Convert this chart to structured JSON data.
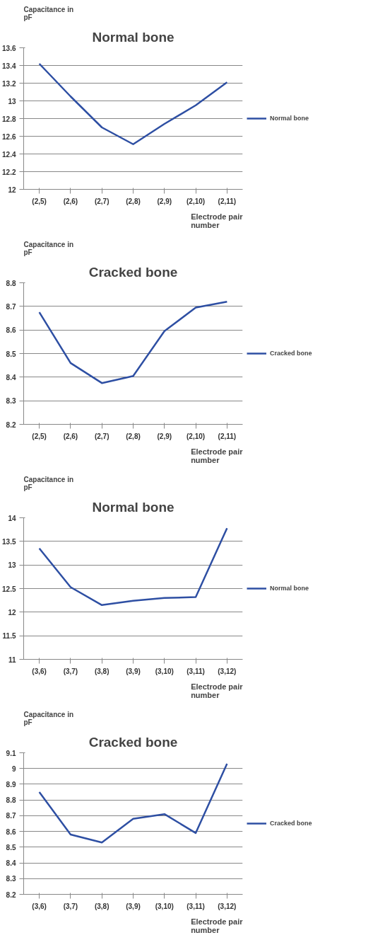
{
  "chart_data": [
    {
      "type": "line",
      "title": "Normal bone",
      "ylabel": "Capacitance in pF",
      "xlabel": "Electrode pair number",
      "categories": [
        "(2,5)",
        "(2,6)",
        "(2,7)",
        "(2,8)",
        "(2,9)",
        "(2,10)",
        "(2,11)"
      ],
      "series": [
        {
          "name": "Normal bone",
          "color": "#2e4fa3",
          "values": [
            13.42,
            13.05,
            12.7,
            12.51,
            12.74,
            12.95,
            13.21
          ]
        }
      ],
      "ylim": [
        12,
        13.6
      ],
      "yticks": [
        12,
        12.2,
        12.4,
        12.6,
        12.8,
        13,
        13.2,
        13.4,
        13.6
      ],
      "grid": "y",
      "legend": "right"
    },
    {
      "type": "line",
      "title": "Cracked bone",
      "ylabel": "Capacitance in pF",
      "xlabel": "Electrode pair number",
      "categories": [
        "(2,5)",
        "(2,6)",
        "(2,7)",
        "(2,8)",
        "(2,9)",
        "(2,10)",
        "(2,11)"
      ],
      "series": [
        {
          "name": "Cracked bone",
          "color": "#2e4fa3",
          "values": [
            8.675,
            8.46,
            8.375,
            8.405,
            8.595,
            8.695,
            8.72
          ]
        }
      ],
      "ylim": [
        8.2,
        8.8
      ],
      "yticks": [
        8.2,
        8.3,
        8.4,
        8.5,
        8.6,
        8.7,
        8.8
      ],
      "grid": "y",
      "legend": "right"
    },
    {
      "type": "line",
      "title": "Normal bone",
      "ylabel": "Capacitance in pF",
      "xlabel": "Electrode pair number",
      "categories": [
        "(3,6)",
        "(3,7)",
        "(3,8)",
        "(3,9)",
        "(3,10)",
        "(3,11)",
        "(3,12)"
      ],
      "series": [
        {
          "name": "Normal bone",
          "color": "#2e4fa3",
          "values": [
            13.35,
            12.53,
            12.15,
            12.24,
            12.3,
            12.32,
            13.78
          ]
        }
      ],
      "ylim": [
        11,
        14
      ],
      "yticks": [
        11,
        11.5,
        12,
        12.5,
        13,
        13.5,
        14
      ],
      "grid": "y",
      "legend": "right"
    },
    {
      "type": "line",
      "title": "Cracked bone",
      "ylabel": "Capacitance in pF",
      "xlabel": "Electrode pair number",
      "categories": [
        "(3,6)",
        "(3,7)",
        "(3,8)",
        "(3,9)",
        "(3,10)",
        "(3,11)",
        "(3,12)"
      ],
      "series": [
        {
          "name": "Cracked bone",
          "color": "#2e4fa3",
          "values": [
            8.85,
            8.58,
            8.53,
            8.68,
            8.71,
            8.59,
            9.03
          ]
        }
      ],
      "ylim": [
        8.2,
        9.1
      ],
      "yticks": [
        8.2,
        8.3,
        8.4,
        8.5,
        8.6,
        8.7,
        8.8,
        8.9,
        9,
        9.1
      ],
      "grid": "y",
      "legend": "right"
    }
  ]
}
